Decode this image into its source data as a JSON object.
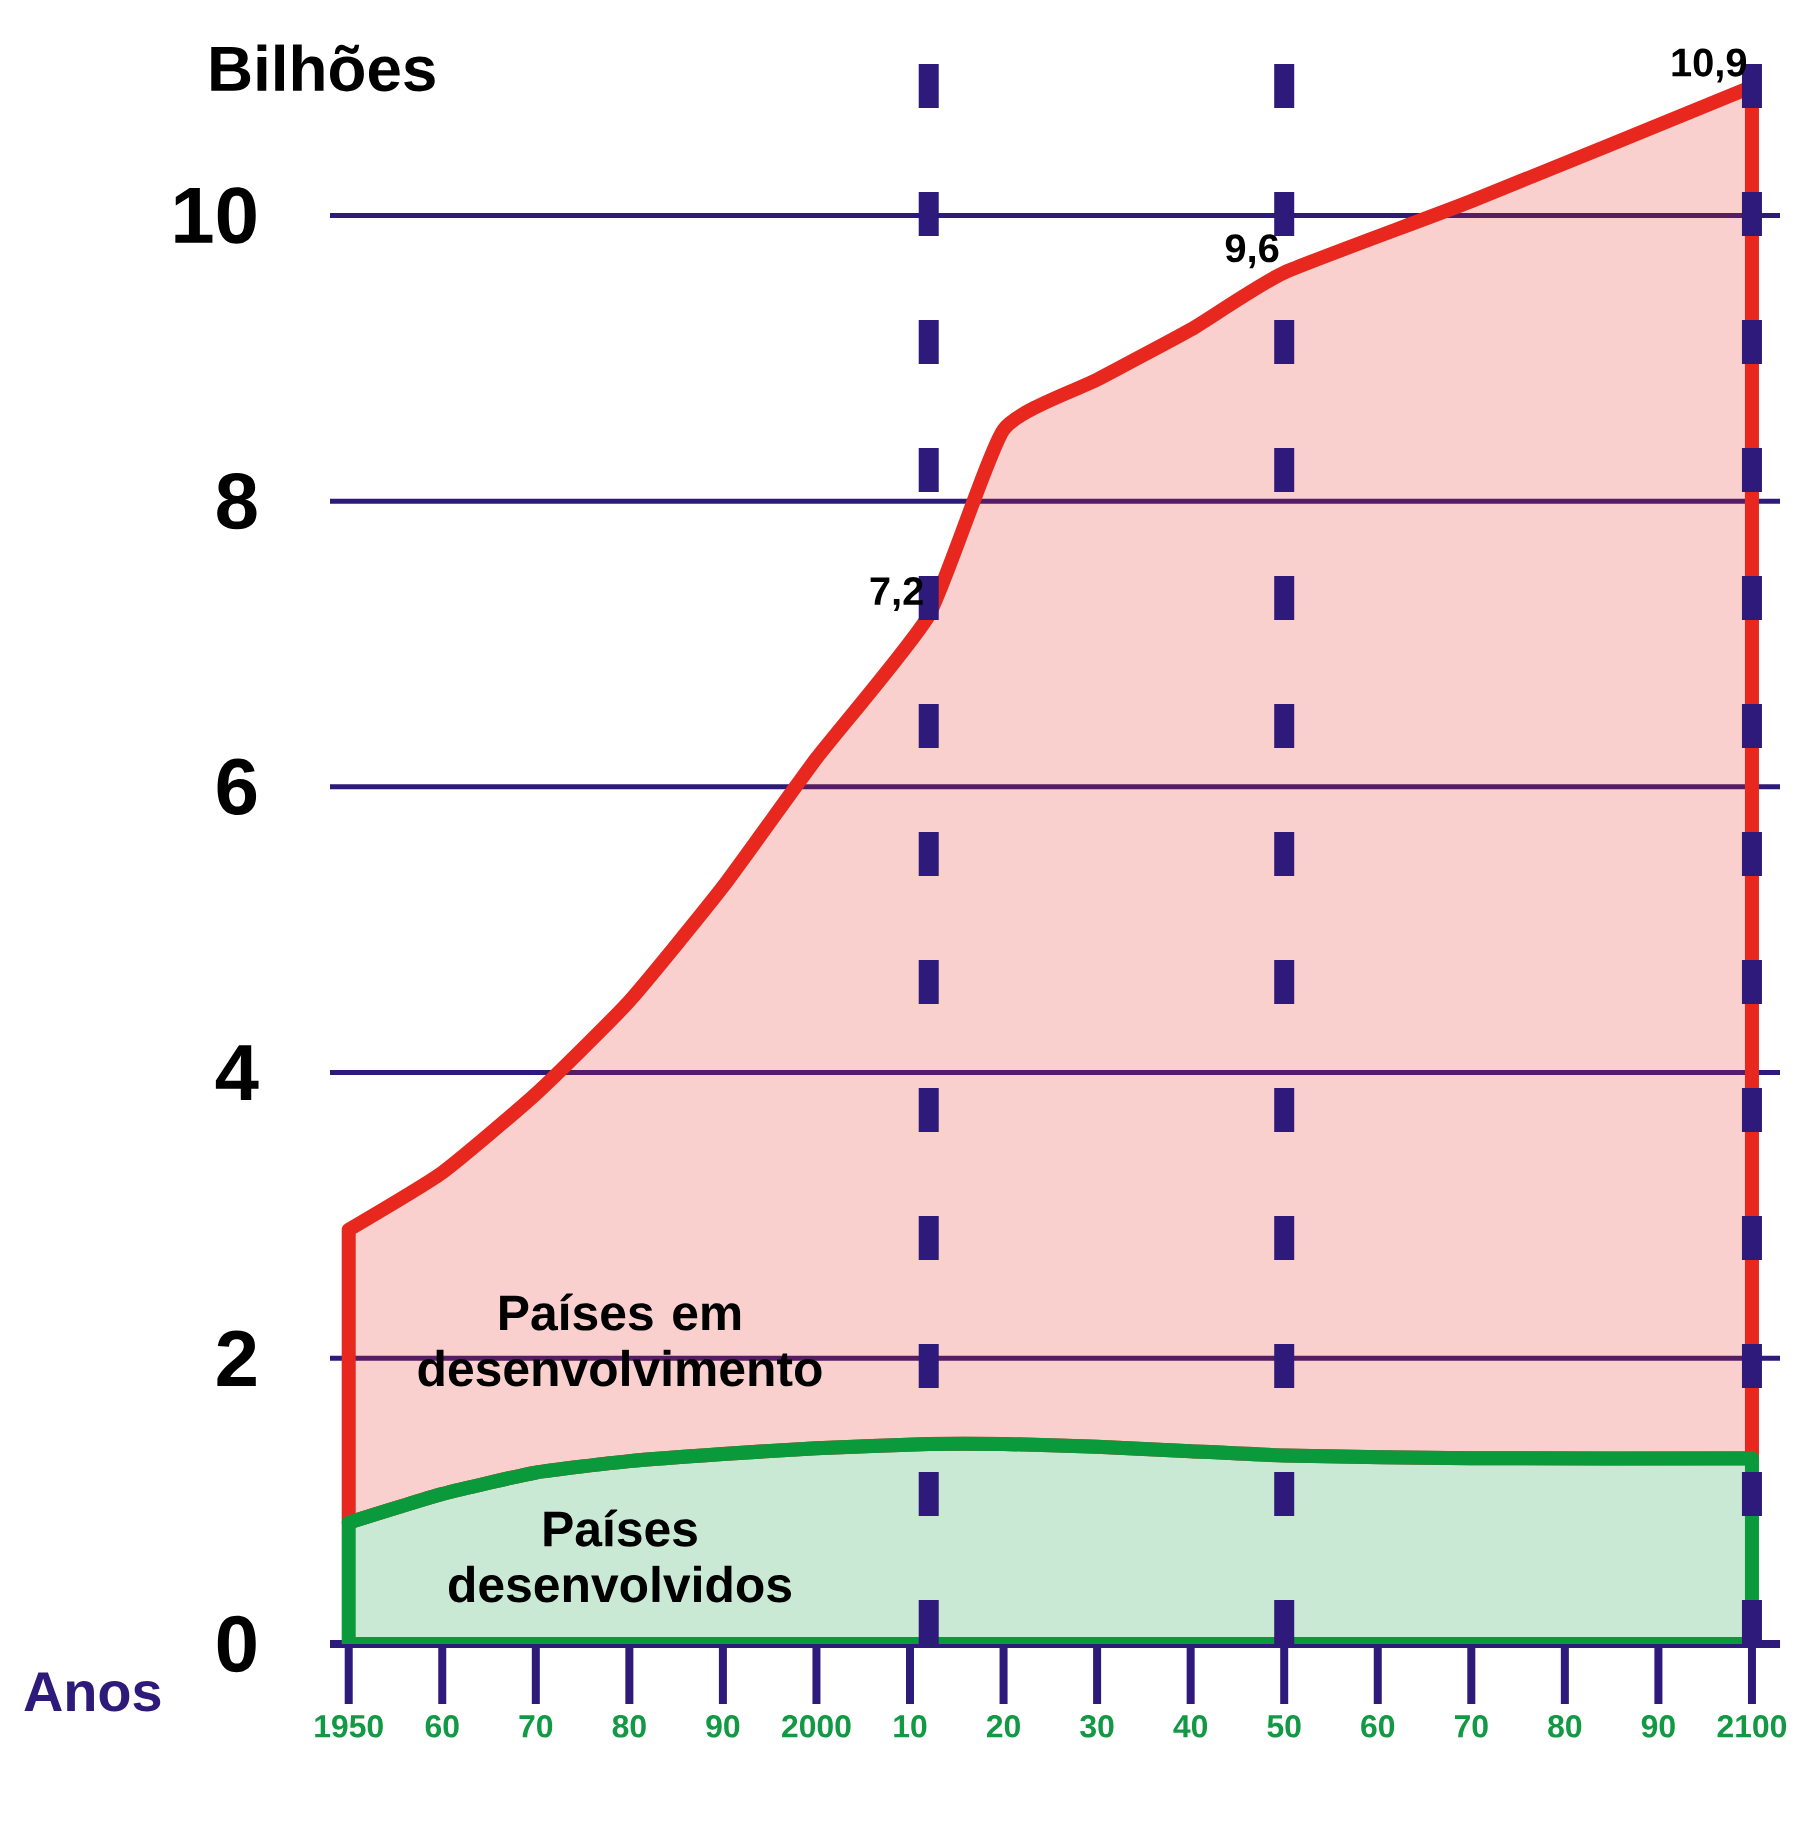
{
  "chart_data": {
    "type": "area",
    "stacked": true,
    "ylabel": "Bilhões",
    "xlabel": "Anos",
    "x": [
      1950,
      1960,
      1970,
      1980,
      1990,
      2000,
      2012,
      2020,
      2030,
      2040,
      2050,
      2070,
      2100
    ],
    "series": [
      {
        "name": "Países desenvolvidos",
        "color": "#0a9a3c",
        "values": [
          0.85,
          1.05,
          1.2,
          1.28,
          1.33,
          1.37,
          1.4,
          1.4,
          1.38,
          1.35,
          1.32,
          1.3,
          1.3
        ]
      },
      {
        "name": "Países em desenvolvimento",
        "color": "#e8281e",
        "values": [
          2.05,
          2.25,
          2.65,
          3.22,
          3.97,
          4.83,
          5.8,
          7.1,
          7.47,
          7.85,
          8.28,
          8.8,
          9.6
        ]
      }
    ],
    "totals": [
      null,
      null,
      null,
      null,
      null,
      null,
      "7,2",
      null,
      null,
      null,
      "9,6",
      null,
      "10,9"
    ],
    "xlim": [
      1948,
      2103
    ],
    "ylim": [
      0,
      11.2
    ],
    "xticks": [
      {
        "value": 1950,
        "label": "1950"
      },
      {
        "value": 1960,
        "label": "60"
      },
      {
        "value": 1970,
        "label": "70"
      },
      {
        "value": 1980,
        "label": "80"
      },
      {
        "value": 1990,
        "label": "90"
      },
      {
        "value": 2000,
        "label": "2000"
      },
      {
        "value": 2010,
        "label": "10"
      },
      {
        "value": 2020,
        "label": "20"
      },
      {
        "value": 2030,
        "label": "30"
      },
      {
        "value": 2040,
        "label": "40"
      },
      {
        "value": 2050,
        "label": "50"
      },
      {
        "value": 2060,
        "label": "60"
      },
      {
        "value": 2070,
        "label": "70"
      },
      {
        "value": 2080,
        "label": "80"
      },
      {
        "value": 2090,
        "label": "90"
      },
      {
        "value": 2100,
        "label": "2100"
      }
    ],
    "yticks": [
      0,
      2,
      4,
      6,
      8,
      10
    ],
    "grid": "y",
    "legend": false,
    "marker": "none",
    "ref_lines": [
      {
        "axis": "x",
        "value": 2012,
        "color": "#2e1a7a",
        "line_style": "dashed"
      },
      {
        "axis": "x",
        "value": 2050,
        "color": "#2e1a7a",
        "line_style": "dashed"
      },
      {
        "axis": "x",
        "value": 2100,
        "color": "#2e1a7a",
        "line_style": "dashed"
      }
    ]
  }
}
